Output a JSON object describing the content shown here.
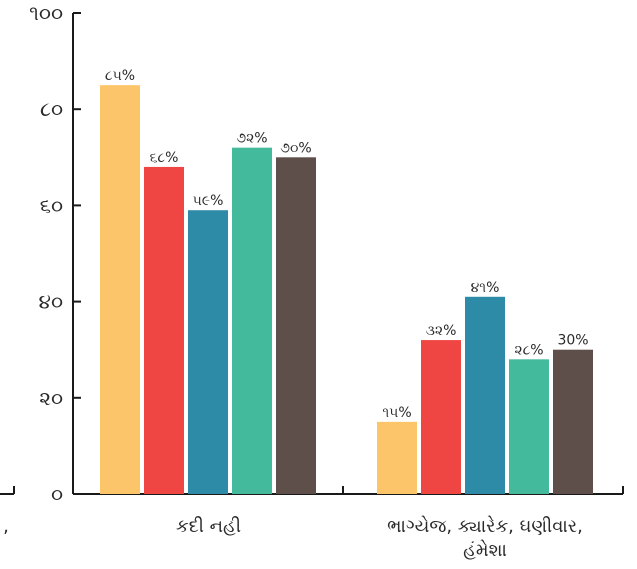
{
  "chart_data": {
    "type": "bar",
    "title": "",
    "xlabel": "",
    "ylabel": "",
    "ylim": [
      0,
      100
    ],
    "y_ticks": [
      0,
      20,
      40,
      60,
      80,
      100
    ],
    "y_tick_labels": [
      "૦",
      "૨૦",
      "૪૦",
      "૬૦",
      "૮૦",
      "૧૦૦"
    ],
    "grid": false,
    "legend": "none",
    "categories": [
      "કદી નહી",
      "ભાગ્યેજ, ક્યારેક, ઘણીવાર, હંમેશા"
    ],
    "category_label_lines": [
      [
        "કદી નહી"
      ],
      [
        "ભાગ્યેજ, ક્યારેક, ઘણીવાર,",
        "હંમેશા"
      ]
    ],
    "partial_left_label": ",",
    "series": [
      {
        "color": "#FDC56A",
        "values": [
          85,
          15
        ],
        "labels": [
          "૮૫%",
          "૧૫%"
        ]
      },
      {
        "color": "#EF4543",
        "values": [
          68,
          32
        ],
        "labels": [
          "૬૮%",
          "૩૨%"
        ]
      },
      {
        "color": "#2E8BA8",
        "values": [
          59,
          41
        ],
        "labels": [
          "૫૯%",
          "૪૧%"
        ]
      },
      {
        "color": "#43BA9B",
        "values": [
          72,
          28
        ],
        "labels": [
          "૭૨%",
          "૨૮%"
        ]
      },
      {
        "color": "#5E4F4A",
        "values": [
          70,
          30
        ],
        "labels": [
          "૭૦%",
          "30%"
        ]
      }
    ]
  }
}
